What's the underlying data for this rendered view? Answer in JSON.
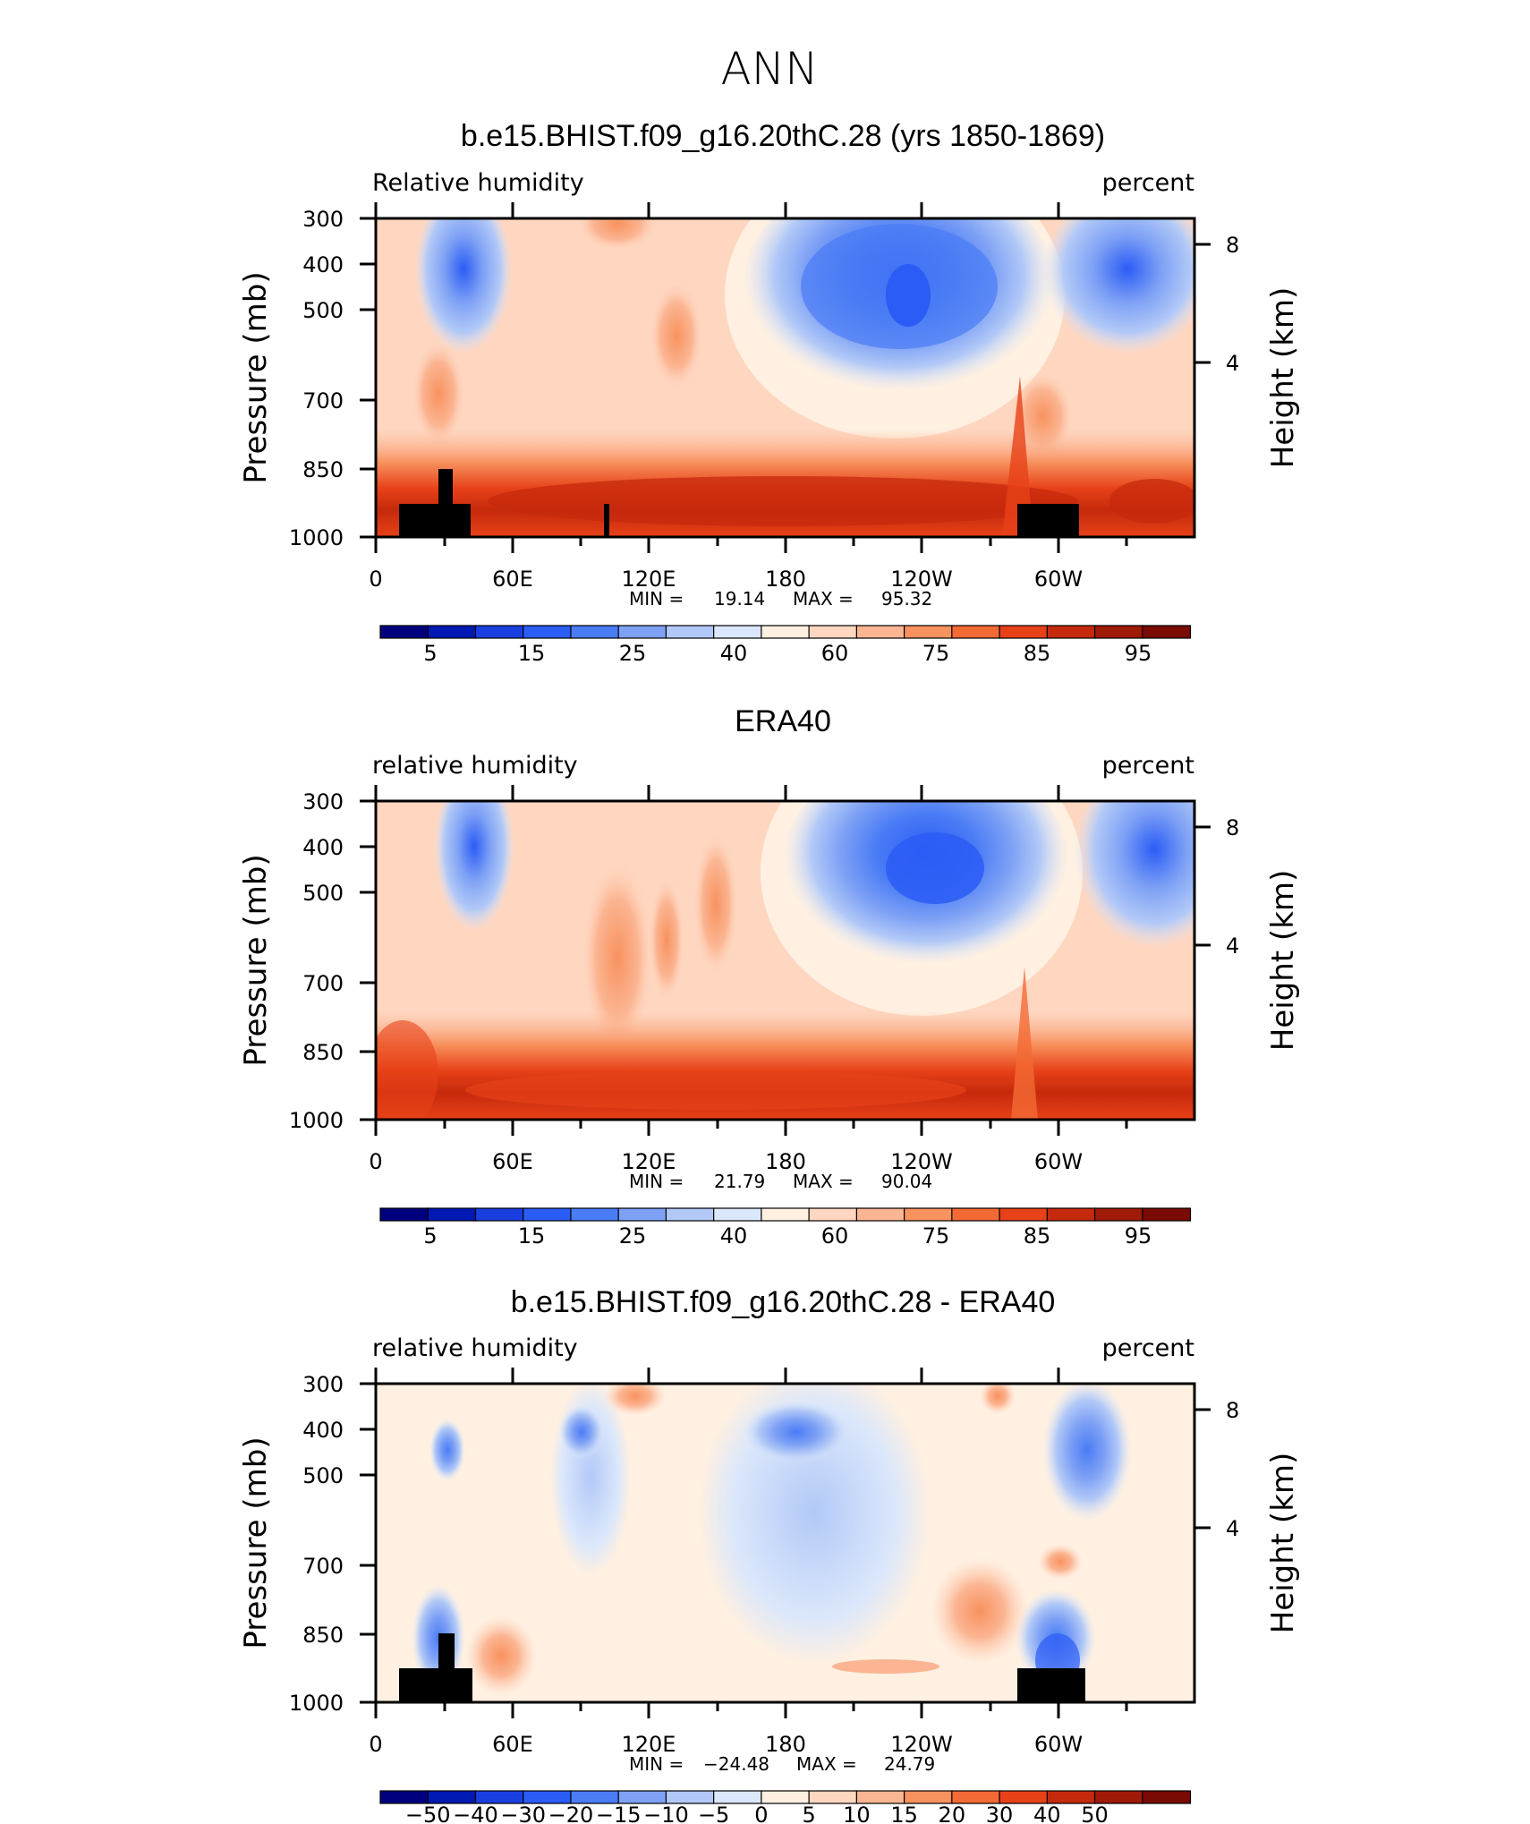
{
  "page": {
    "super_title": "ANN"
  },
  "colors": {
    "rh_palette": [
      "#00007f",
      "#0019b2",
      "#1a3fe0",
      "#2b5cf5",
      "#4a7cf5",
      "#7ea1f5",
      "#b2c9f7",
      "#dbe7fb",
      "#fff0e1",
      "#ffd6c0",
      "#fbb592",
      "#f8925f",
      "#f36a35",
      "#e74118",
      "#c52a0c",
      "#a01a08",
      "#7a0a04"
    ],
    "diff_palette": [
      "#00007f",
      "#0019b2",
      "#1a3fe0",
      "#2b5cf5",
      "#4a7cf5",
      "#7ea1f5",
      "#b2c9f7",
      "#dbe7fb",
      "#fff0e1",
      "#ffd6c0",
      "#fbb592",
      "#f8925f",
      "#f36a35",
      "#e74118",
      "#c52a0c",
      "#a01a08",
      "#7a0a04"
    ],
    "topography": "#000000"
  },
  "chart_data": [
    {
      "type": "heatmap",
      "title": "b.e15.BHIST.f09_g16.20thC.28 (yrs 1850-1869)",
      "left_label": "Relative humidity",
      "right_label": "percent",
      "ylabel": "Pressure (mb)",
      "ylabel_right": "Height (km)",
      "x_ticks": [
        "0",
        "60E",
        "120E",
        "180",
        "120W",
        "60W"
      ],
      "y_ticks": [
        "300",
        "400",
        "500",
        "700",
        "850",
        "1000"
      ],
      "right_ticks": [
        "8",
        "4"
      ],
      "min_label": "MIN =",
      "min_value": "19.14",
      "max_label": "MAX =",
      "max_value": "95.32",
      "colorbar_labels": [
        "5",
        "15",
        "25",
        "40",
        "60",
        "75",
        "85",
        "95"
      ],
      "colorbar_levels": [
        "",
        "5",
        "10",
        "15",
        "20",
        "25",
        "30",
        "40",
        "50",
        "60",
        "70",
        "75",
        "80",
        "85",
        "90",
        "95",
        ""
      ],
      "show_topography": true,
      "x_range": [
        0,
        360
      ],
      "y_range": [
        300,
        1000
      ]
    },
    {
      "type": "heatmap",
      "title": "ERA40",
      "left_label": "relative humidity",
      "right_label": "percent",
      "ylabel": "Pressure (mb)",
      "ylabel_right": "Height (km)",
      "x_ticks": [
        "0",
        "60E",
        "120E",
        "180",
        "120W",
        "60W"
      ],
      "y_ticks": [
        "300",
        "400",
        "500",
        "700",
        "850",
        "1000"
      ],
      "right_ticks": [
        "8",
        "4"
      ],
      "min_label": "MIN =",
      "min_value": "21.79",
      "max_label": "MAX =",
      "max_value": "90.04",
      "colorbar_labels": [
        "5",
        "15",
        "25",
        "40",
        "60",
        "75",
        "85",
        "95"
      ],
      "show_topography": false,
      "x_range": [
        0,
        360
      ],
      "y_range": [
        300,
        1000
      ]
    },
    {
      "type": "heatmap",
      "title": "b.e15.BHIST.f09_g16.20thC.28 - ERA40",
      "left_label": "relative humidity",
      "right_label": "percent",
      "ylabel": "Pressure (mb)",
      "ylabel_right": "Height (km)",
      "x_ticks": [
        "0",
        "60E",
        "120E",
        "180",
        "120W",
        "60W"
      ],
      "y_ticks": [
        "300",
        "400",
        "500",
        "700",
        "850",
        "1000"
      ],
      "right_ticks": [
        "8",
        "4"
      ],
      "min_label": "MIN =",
      "min_value": "−24.48",
      "max_label": "MAX =",
      "max_value": "24.79",
      "colorbar_labels": [
        "−50",
        "−40",
        "−30",
        "−20",
        "−15",
        "−10",
        "−5",
        "0",
        "5",
        "10",
        "15",
        "20",
        "30",
        "40",
        "50"
      ],
      "show_topography": true,
      "x_range": [
        0,
        360
      ],
      "y_range": [
        300,
        1000
      ]
    }
  ]
}
